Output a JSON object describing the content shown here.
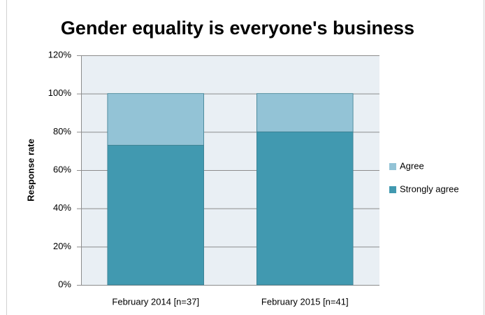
{
  "chart_data": {
    "type": "stacked_bar",
    "title": "Gender equality is everyone's business",
    "y_label": "Response rate",
    "categories": [
      "February 2014 [n=37]",
      "February 2015 [n=41]"
    ],
    "series": [
      {
        "name": "Strongly agree",
        "color": "#4199b0",
        "values": [
          73,
          80
        ]
      },
      {
        "name": "Agree",
        "color": "#93c3d6",
        "values": [
          27,
          20
        ]
      }
    ],
    "ylim": [
      0,
      120
    ],
    "yticks": [
      {
        "value": 0,
        "label": "0%"
      },
      {
        "value": 20,
        "label": "20%"
      },
      {
        "value": 40,
        "label": "40%"
      },
      {
        "value": 60,
        "label": "60%"
      },
      {
        "value": 80,
        "label": "80%"
      },
      {
        "value": 100,
        "label": "100%"
      },
      {
        "value": 120,
        "label": "120%"
      }
    ],
    "grid": true,
    "legend": "right"
  }
}
